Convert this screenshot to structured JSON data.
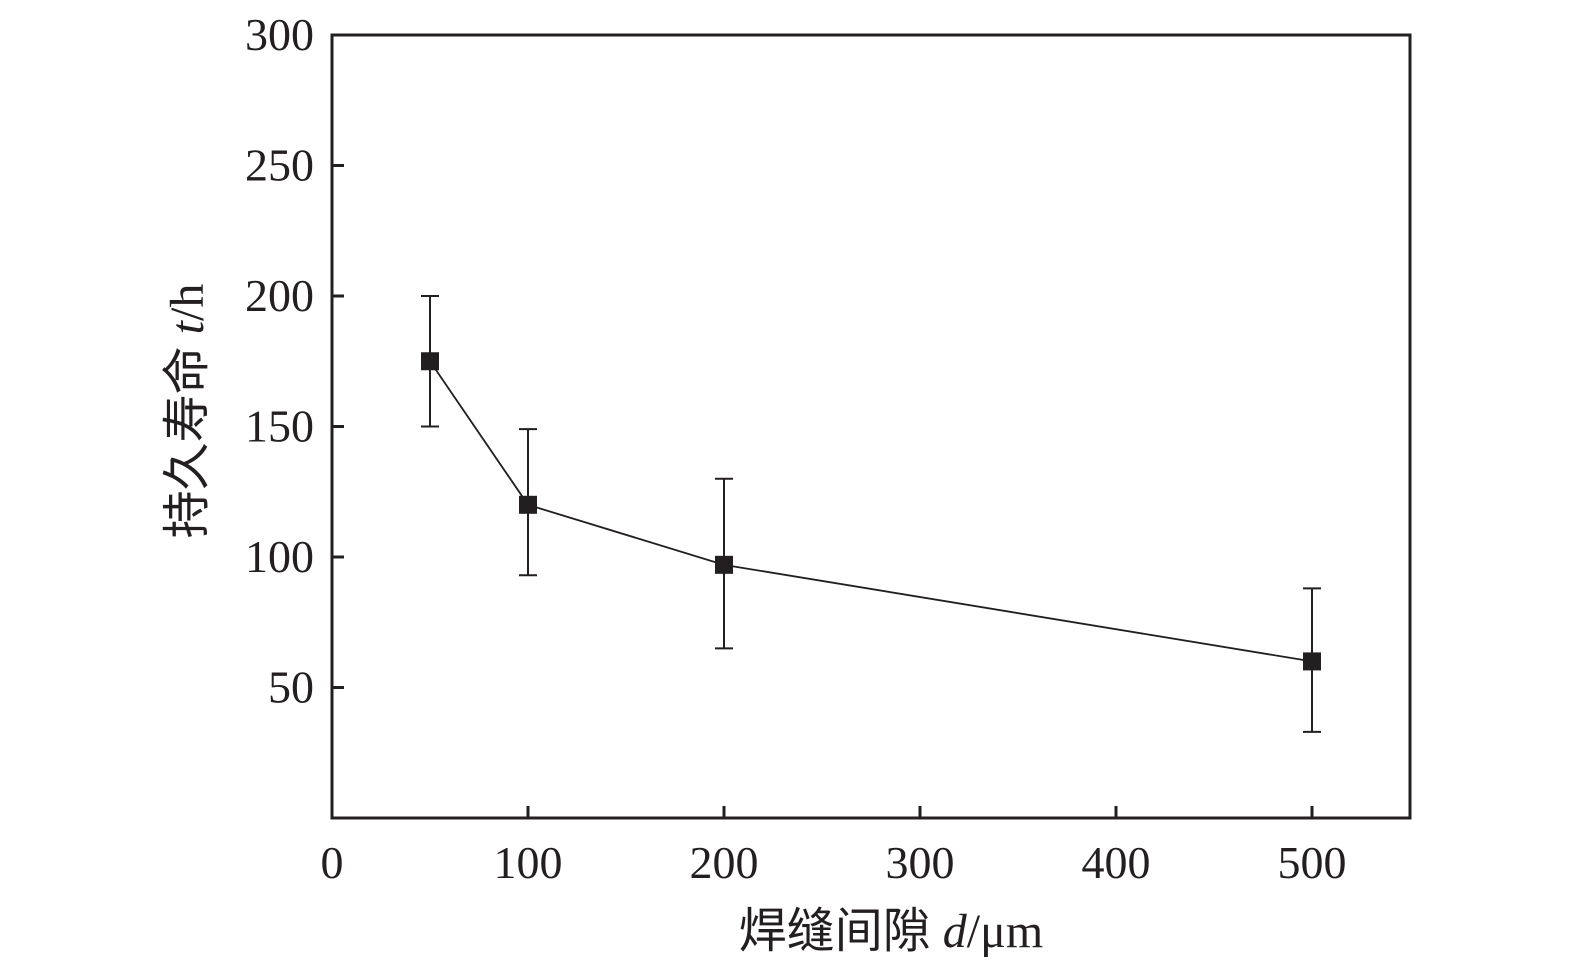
{
  "chart_data": {
    "type": "line",
    "xlabel": {
      "prefix": "焊缝间隙 ",
      "symbol": "d",
      "unit": "/μm"
    },
    "ylabel": {
      "prefix": "持久寿命 ",
      "symbol": "t",
      "unit": "/h"
    },
    "xlim": [
      0,
      550
    ],
    "ylim": [
      0,
      300
    ],
    "x_ticks": [
      0,
      100,
      200,
      300,
      400,
      500
    ],
    "x_tick_labels": [
      "0",
      "100",
      "200",
      "300",
      "400",
      "500"
    ],
    "y_ticks": [
      50,
      100,
      150,
      200,
      250,
      300
    ],
    "y_tick_labels": [
      "50",
      "100",
      "150",
      "200",
      "250",
      "300"
    ],
    "grid": false,
    "series": [
      {
        "marker": "square",
        "color": "#231f20",
        "points": [
          {
            "x": 50,
            "y": 175,
            "err_low": 150,
            "err_high": 200
          },
          {
            "x": 100,
            "y": 120,
            "err_low": 93,
            "err_high": 149
          },
          {
            "x": 200,
            "y": 97,
            "err_low": 65,
            "err_high": 130
          },
          {
            "x": 500,
            "y": 60,
            "err_low": 33,
            "err_high": 88
          }
        ]
      }
    ]
  }
}
